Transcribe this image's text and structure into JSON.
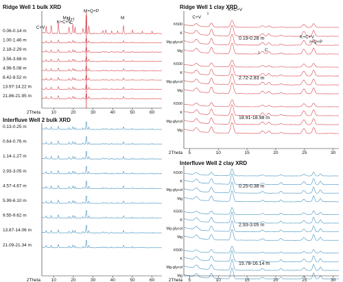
{
  "panels": [
    {
      "id": "ridge-bulk",
      "title": "Ridge Well 1 bulk XRD",
      "color": "#d94049",
      "kind": "bulk",
      "xaxis_label": "2Theta",
      "samples": [
        "0.06-0.14 m",
        "1.00-1.46 m",
        "2.18-2.29 m",
        "3.56-3.68 m",
        "4.98-5.08 m",
        "8.42-8.52 m",
        "13.97-14.22 m",
        "21.86-21.95 m"
      ]
    },
    {
      "id": "ridge-clay",
      "title": "Ridge Well 1 clay XRD",
      "color": "#d94049",
      "kind": "clay",
      "xaxis_label": "2Theta",
      "samples": [
        "0.19-0.28 m",
        "2.72-2.83 m",
        "18.91-18.98 m"
      ],
      "treatments": [
        "K500",
        "K",
        "Mg-glycol",
        "Mg"
      ]
    },
    {
      "id": "interfluve-bulk",
      "title": "Interfluve Well 2 bulk XRD",
      "color": "#3f8fc0",
      "kind": "bulk",
      "xaxis_label": "2Theta",
      "samples": [
        "0.13-0.25 m",
        "0.64-0.76 m",
        "1.14-1.27 m",
        "2.93-3.05 m",
        "4.57-4.67 m",
        "5.99-6.10 m",
        "9.55-9.62 m",
        "13.87-14.06 m",
        "21.09-21.34 m"
      ]
    },
    {
      "id": "interfluve-clay",
      "title": "Interfluve Well 2 clay XRD",
      "color": "#3f8fc0",
      "kind": "clay",
      "xaxis_label": "2Theta",
      "samples": [
        "0.25-0.38 m",
        "2.93-3.05 m",
        "15.78-16.14 m"
      ],
      "treatments": [
        "K500",
        "K",
        "Mg-glycol",
        "Mg"
      ]
    }
  ],
  "peak_labels": {
    "bulk": [
      "C+V",
      "K+C+V",
      "M+I",
      "M+I",
      "C",
      "M+Q+P",
      "M"
    ],
    "clay_low": [
      "C+V",
      "I",
      "K+C+V"
    ],
    "clay_high": [
      "I",
      "C",
      "K+C+V",
      "I+Q+P"
    ]
  },
  "chart_data": [
    {
      "type": "line",
      "title": "Ridge Well 1 bulk XRD",
      "xlabel": "2Theta",
      "xlim": [
        4,
        65
      ],
      "xticks": [
        10,
        20,
        30,
        40,
        50,
        60
      ],
      "series": [
        {
          "name": "0.06-0.14 m"
        },
        {
          "name": "1.00-1.46 m"
        },
        {
          "name": "2.18-2.29 m"
        },
        {
          "name": "3.56-3.68 m"
        },
        {
          "name": "4.98-5.08 m"
        },
        {
          "name": "8.42-8.52 m"
        },
        {
          "name": "13.97-14.22 m"
        },
        {
          "name": "21.86-21.95 m"
        }
      ],
      "peaks_2theta": [
        6.2,
        8.8,
        12.4,
        17.8,
        19.8,
        20.9,
        26.6,
        45.5
      ]
    },
    {
      "type": "line",
      "title": "Ridge Well 1 clay XRD",
      "xlabel": "2Theta",
      "xlim": [
        4,
        31
      ],
      "xticks": [
        5,
        10,
        15,
        20,
        25,
        30
      ],
      "series": [
        {
          "name": "0.19-0.28 m"
        },
        {
          "name": "2.72-2.83 m"
        },
        {
          "name": "18.91-18.98 m"
        }
      ],
      "peaks_2theta": [
        6.2,
        8.8,
        12.4,
        17.7,
        18.8,
        24.9,
        26.6
      ]
    },
    {
      "type": "line",
      "title": "Interfluve Well 2 bulk XRD",
      "xlabel": "2Theta",
      "xlim": [
        4,
        65
      ],
      "xticks": [
        10,
        20,
        30,
        40,
        50,
        60
      ],
      "series": [
        {
          "name": "0.13-0.25 m"
        },
        {
          "name": "0.64-0.76 m"
        },
        {
          "name": "1.14-1.27 m"
        },
        {
          "name": "2.93-3.05 m"
        },
        {
          "name": "4.57-4.67 m"
        },
        {
          "name": "5.99-6.10 m"
        },
        {
          "name": "9.55-9.62 m"
        },
        {
          "name": "13.87-14.06 m"
        },
        {
          "name": "21.09-21.34 m"
        }
      ],
      "peaks_2theta": [
        12.4,
        20.9,
        26.6,
        27.9,
        36.5,
        39.5,
        42.5,
        50.1,
        60.0
      ]
    },
    {
      "type": "line",
      "title": "Interfluve Well 2 clay XRD",
      "xlabel": "2Theta",
      "xlim": [
        4,
        31
      ],
      "xticks": [
        5,
        10,
        15,
        20,
        25,
        30
      ],
      "series": [
        {
          "name": "0.25-0.38 m"
        },
        {
          "name": "2.93-3.05 m"
        },
        {
          "name": "15.78-16.14 m"
        }
      ],
      "peaks_2theta": [
        6.2,
        8.8,
        12.4,
        17.7,
        20.9,
        26.6,
        27.8
      ]
    }
  ]
}
